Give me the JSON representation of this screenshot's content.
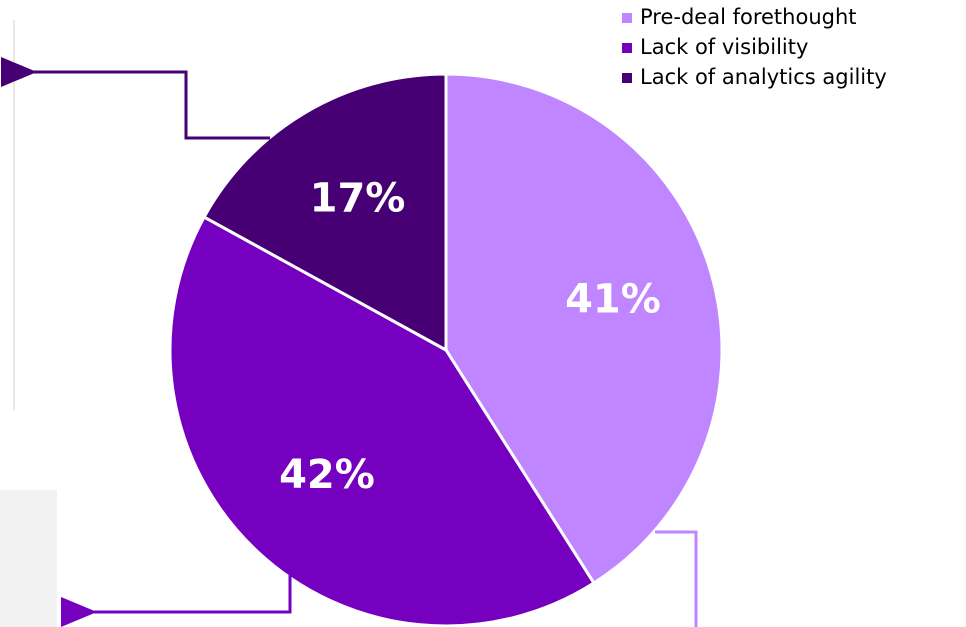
{
  "chart_data": {
    "type": "pie",
    "categories": [
      "Pre-deal forethought",
      "Lack of visibility",
      "Lack of analytics agility"
    ],
    "values": [
      41,
      42,
      17
    ],
    "value_labels": [
      "41%",
      "42%",
      "17%"
    ],
    "colors": [
      "#bf86ff",
      "#7500c0",
      "#460073"
    ],
    "legend": "top-right"
  }
}
